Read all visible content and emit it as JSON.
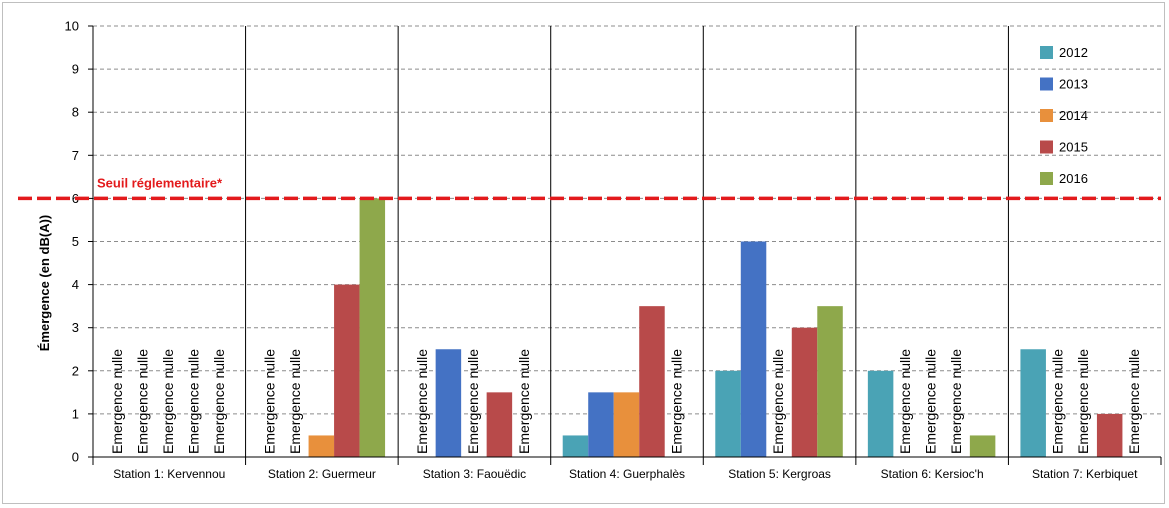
{
  "chart_data": {
    "type": "bar",
    "title": "",
    "xlabel": "",
    "ylabel": "Émergence (en dB(A))",
    "ylim": [
      0,
      10
    ],
    "yticks": [
      0,
      1,
      2,
      3,
      4,
      5,
      6,
      7,
      8,
      9,
      10
    ],
    "grid": true,
    "legend_position": "top-right",
    "categories": [
      "Station 1: Kervennou",
      "Station 2: Guermeur",
      "Station 3: Faouëdic",
      "Station 4: Guerphalès",
      "Station 5: Kergroas",
      "Station 6: Kersioc'h",
      "Station 7: Kerbiquet"
    ],
    "series": [
      {
        "name": "2012",
        "color": "#4aa3b5",
        "values": [
          null,
          null,
          null,
          0.5,
          2,
          2,
          2.5
        ]
      },
      {
        "name": "2013",
        "color": "#4472c4",
        "values": [
          null,
          null,
          2.5,
          1.5,
          5,
          null,
          null
        ]
      },
      {
        "name": "2014",
        "color": "#e8903c",
        "values": [
          null,
          0.5,
          null,
          1.5,
          null,
          null,
          null
        ]
      },
      {
        "name": "2015",
        "color": "#b84a4a",
        "values": [
          null,
          4,
          1.5,
          3.5,
          3,
          null,
          1
        ]
      },
      {
        "name": "2016",
        "color": "#8ea84b",
        "values": [
          null,
          6,
          null,
          null,
          3.5,
          0.5,
          null
        ]
      }
    ],
    "null_label": "Emergence nulle",
    "threshold": {
      "value": 6,
      "label": "Seuil réglementaire*",
      "color": "#e31a1c"
    }
  }
}
